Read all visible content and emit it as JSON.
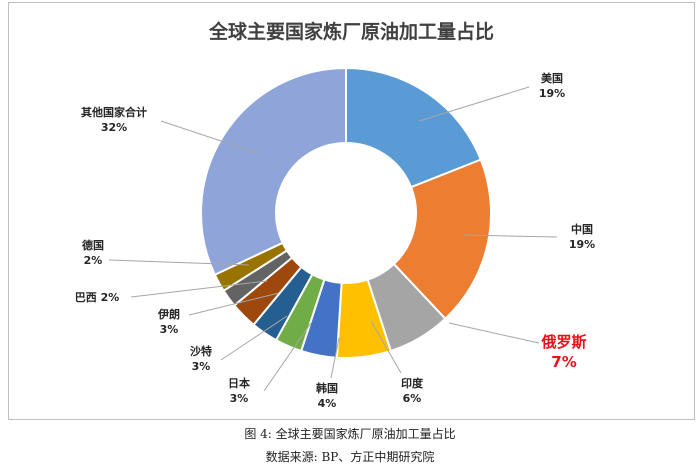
{
  "chart_data": {
    "type": "pie",
    "title": "全球主要国家炼厂原油加工量占比",
    "donut": true,
    "categories": [
      "美国",
      "中国",
      "俄罗斯",
      "印度",
      "韩国",
      "日本",
      "沙特",
      "伊朗",
      "巴西",
      "德国",
      "其他国家合计"
    ],
    "values": [
      19,
      19,
      7,
      6,
      4,
      3,
      3,
      3,
      2,
      2,
      32
    ],
    "value_labels": [
      "19%",
      "19%",
      "7%",
      "6%",
      "4%",
      "3%",
      "3%",
      "3%",
      "2%",
      "2%",
      "32%"
    ],
    "colors": [
      "#5b9bd5",
      "#ed7d31",
      "#a5a5a5",
      "#ffc000",
      "#4472c4",
      "#70ad47",
      "#255e91",
      "#9e480e",
      "#636363",
      "#997300",
      "#8fa5d9"
    ],
    "highlight": "俄罗斯",
    "highlight_color": "#e8111a"
  },
  "caption": {
    "figure": "图 4: 全球主要国家炼厂原油加工量占比",
    "source": "数据来源: BP、方正中期研究院"
  }
}
